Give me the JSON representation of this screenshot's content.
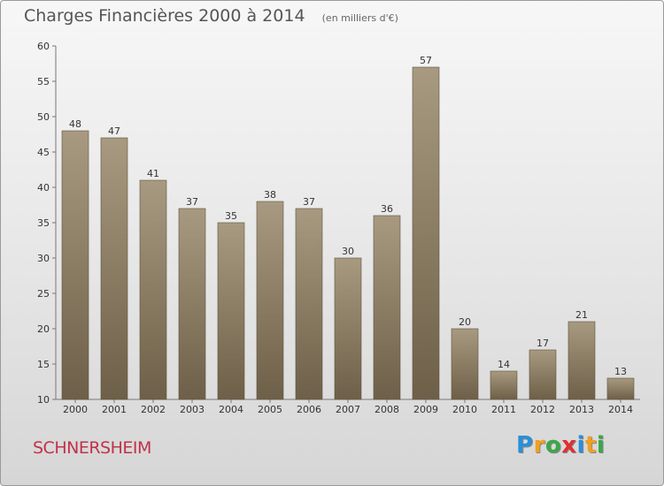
{
  "chart_data": {
    "type": "bar",
    "title": "Charges Financières 2000 à 2014",
    "unit_label": "(en milliers d'€)",
    "categories": [
      "2000",
      "2001",
      "2002",
      "2003",
      "2004",
      "2005",
      "2006",
      "2007",
      "2008",
      "2009",
      "2010",
      "2011",
      "2012",
      "2013",
      "2014"
    ],
    "values": [
      48,
      47,
      41,
      37,
      35,
      38,
      37,
      30,
      36,
      57,
      20,
      14,
      17,
      21,
      13
    ],
    "ylim": [
      10,
      60
    ],
    "yticks": [
      10,
      15,
      20,
      25,
      30,
      35,
      40,
      45,
      50,
      55,
      60
    ],
    "grid": false,
    "bar_color_top": "#a89a80",
    "bar_color_bottom": "#6e6048"
  },
  "footer": {
    "commune": "SCHNERSHEIM",
    "logo_letters": [
      "P",
      "r",
      "o",
      "x",
      "i",
      "t",
      "i"
    ],
    "logo_colors": [
      "#2a8fd8",
      "#f0a020",
      "#3aa848",
      "#e03030",
      "#2a8fd8",
      "#f0a020",
      "#3aa848"
    ]
  }
}
